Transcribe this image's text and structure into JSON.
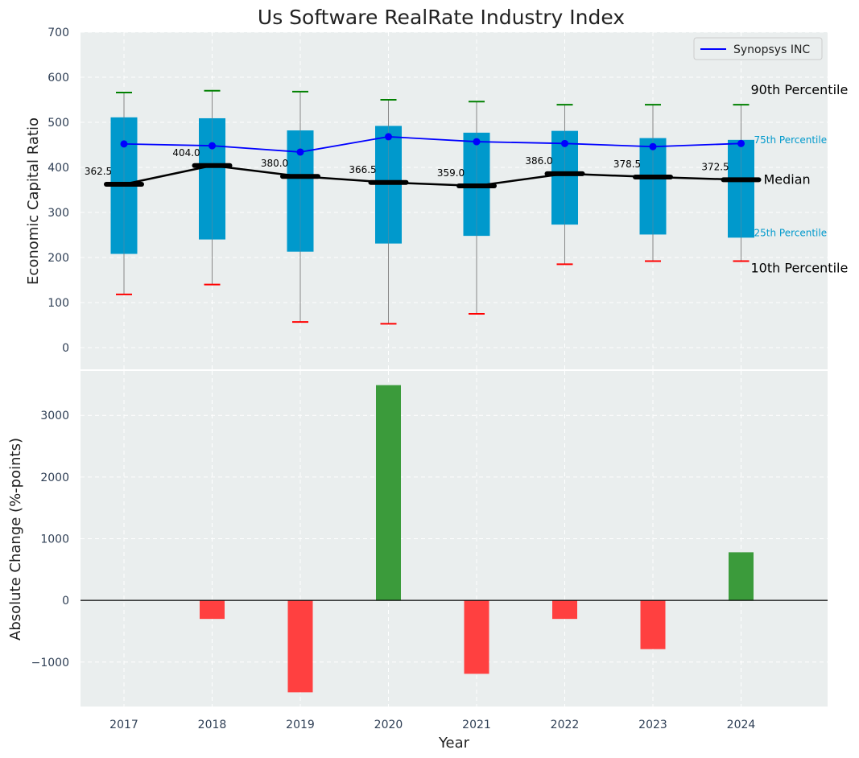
{
  "chart_data": {
    "title": "Us Software RealRate Industry Index",
    "xlabel": "Year",
    "years": [
      "2017",
      "2018",
      "2019",
      "2020",
      "2021",
      "2022",
      "2023",
      "2024"
    ],
    "colors": {
      "panel_bg": "#eaeeee",
      "box_fill": "#0099cc",
      "whisker": "#888888",
      "p90_cap": "#008000",
      "p10_cap": "#ff0000",
      "company_line": "#0000ff",
      "median_line": "#000000",
      "bar_positive": "#3b9b3b",
      "bar_negative": "#ff4040",
      "p75_label": "#0099cc",
      "p25_label": "#0099cc"
    },
    "top_panel": {
      "type": "box",
      "ylabel": "Economic Capital Ratio",
      "ylim": [
        -50,
        700
      ],
      "yticks": [
        "0",
        "100",
        "200",
        "300",
        "400",
        "500",
        "600",
        "700"
      ],
      "p10": [
        118,
        140,
        57,
        53,
        75,
        185,
        192,
        192
      ],
      "p25": [
        208,
        240,
        213,
        231,
        248,
        273,
        251,
        244
      ],
      "median": [
        362.5,
        404.0,
        380.0,
        366.5,
        359.0,
        386.0,
        378.5,
        372.5
      ],
      "median_labels": [
        "362.5",
        "404.0",
        "380.0",
        "366.5",
        "359.0",
        "386.0",
        "378.5",
        "372.5"
      ],
      "p75": [
        511,
        509,
        482,
        492,
        477,
        481,
        465,
        461
      ],
      "p90": [
        566,
        570,
        568,
        550,
        546,
        539,
        539,
        539
      ],
      "company": {
        "name": "Synopsys INC",
        "values": [
          452,
          448,
          434,
          468,
          457,
          453,
          446,
          453
        ]
      },
      "percentile_labels": {
        "p90": "90th Percentile",
        "p75": "75th Percentile",
        "median": "Median",
        "p25": "25th Percentile",
        "p10": "10th Percentile"
      },
      "legend_position": "top-right",
      "grid": true
    },
    "bottom_panel": {
      "type": "bar",
      "ylabel": "Absolute Change (%-points)",
      "ylim": [
        -1720,
        3720
      ],
      "yticks": [
        "−1000",
        "0",
        "1000",
        "2000",
        "3000"
      ],
      "ytick_values": [
        -1000,
        0,
        1000,
        2000,
        3000
      ],
      "values": [
        0,
        -300,
        -1490,
        3490,
        -1190,
        -300,
        -790,
        780
      ],
      "grid": true
    }
  }
}
